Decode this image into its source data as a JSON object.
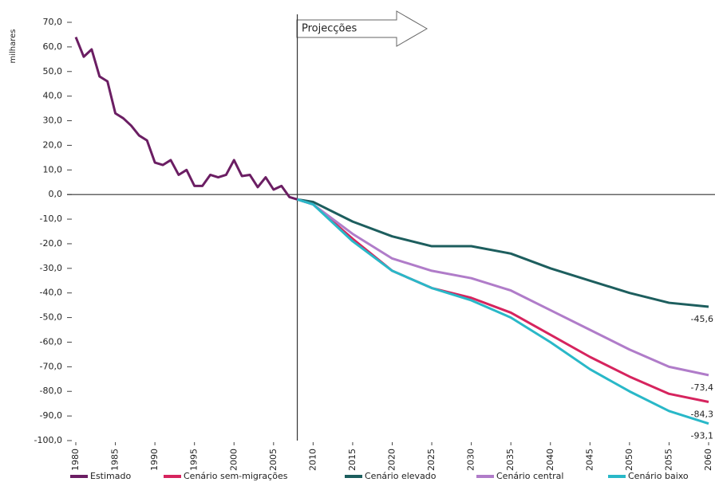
{
  "chart_data": {
    "type": "line",
    "y_label": "milhares",
    "annotation": "Projecções",
    "projection_start": 2008,
    "xlim": [
      1980,
      2060
    ],
    "xticks": [
      1980,
      1985,
      1990,
      1995,
      2000,
      2005,
      2010,
      2015,
      2020,
      2025,
      2030,
      2035,
      2040,
      2045,
      2050,
      2055,
      2060
    ],
    "ylim": [
      -100,
      70
    ],
    "yticks": [
      {
        "value": 70,
        "label": "70,0"
      },
      {
        "value": 60,
        "label": "60,0"
      },
      {
        "value": 50,
        "label": "50,0"
      },
      {
        "value": 40,
        "label": "40,0"
      },
      {
        "value": 30,
        "label": "30,0"
      },
      {
        "value": 20,
        "label": "20,0"
      },
      {
        "value": 10,
        "label": "10,0"
      },
      {
        "value": 0,
        "label": "0,0"
      },
      {
        "value": -10,
        "label": "-10,0"
      },
      {
        "value": -20,
        "label": "-20,0"
      },
      {
        "value": -30,
        "label": "-30,0"
      },
      {
        "value": -40,
        "label": "-40,0"
      },
      {
        "value": -50,
        "label": "-50,0"
      },
      {
        "value": -60,
        "label": "-60,0"
      },
      {
        "value": -70,
        "label": "-70,0"
      },
      {
        "value": -80,
        "label": "-80,0"
      },
      {
        "value": -90,
        "label": "-90,0"
      },
      {
        "value": -100,
        "label": "-100,0"
      }
    ],
    "series": [
      {
        "name": "Estimado",
        "color": "#6b1e63",
        "x": [
          1980,
          1981,
          1982,
          1983,
          1984,
          1985,
          1986,
          1987,
          1988,
          1989,
          1990,
          1991,
          1992,
          1993,
          1994,
          1995,
          1996,
          1997,
          1998,
          1999,
          2000,
          2001,
          2002,
          2003,
          2004,
          2005,
          2006,
          2007,
          2008
        ],
        "values": [
          64,
          56,
          59,
          48,
          46,
          33,
          31,
          28,
          24,
          22,
          13,
          12,
          14,
          8,
          10,
          3.5,
          3.5,
          8,
          7,
          8,
          14,
          7.5,
          8,
          3,
          7,
          2,
          3.5,
          -1,
          -2
        ]
      },
      {
        "name": "Cenário sem-migrações",
        "color": "#d6245e",
        "x": [
          2008,
          2010,
          2015,
          2020,
          2025,
          2030,
          2035,
          2040,
          2045,
          2050,
          2055,
          2060
        ],
        "values": [
          -2,
          -4,
          -18,
          -31,
          -38,
          -42,
          -48,
          -57,
          -66,
          -74,
          -81,
          -84.3
        ],
        "value_labels": [
          null,
          null,
          null,
          null,
          null,
          null,
          null,
          null,
          null,
          null,
          null,
          "-84,3"
        ]
      },
      {
        "name": "Cenário elevado",
        "color": "#1d5e5e",
        "x": [
          2008,
          2010,
          2015,
          2020,
          2025,
          2030,
          2035,
          2040,
          2045,
          2050,
          2055,
          2060
        ],
        "values": [
          -2,
          -3,
          -11,
          -17,
          -21,
          -21,
          -24,
          -30,
          -35,
          -40,
          -44,
          -45.6
        ],
        "value_labels": [
          null,
          null,
          null,
          null,
          null,
          null,
          null,
          null,
          null,
          null,
          null,
          "-45,6"
        ]
      },
      {
        "name": "Cenário central",
        "color": "#b07cc9",
        "x": [
          2008,
          2010,
          2015,
          2020,
          2025,
          2030,
          2035,
          2040,
          2045,
          2050,
          2055,
          2060
        ],
        "values": [
          -2,
          -4,
          -16,
          -26,
          -31,
          -34,
          -39,
          -47,
          -55,
          -63,
          -70,
          -73.4
        ],
        "value_labels": [
          null,
          null,
          null,
          null,
          null,
          null,
          null,
          null,
          null,
          null,
          null,
          "-73,4"
        ]
      },
      {
        "name": "Cenário baixo",
        "color": "#29b8c8",
        "x": [
          2008,
          2010,
          2015,
          2020,
          2025,
          2030,
          2035,
          2040,
          2045,
          2050,
          2055,
          2060
        ],
        "values": [
          -2,
          -4,
          -19,
          -31,
          -38,
          -43,
          -50,
          -60,
          -71,
          -80,
          -88,
          -93.1
        ],
        "value_labels": [
          null,
          null,
          null,
          null,
          null,
          null,
          null,
          null,
          null,
          null,
          null,
          "-93,1"
        ]
      }
    ]
  }
}
